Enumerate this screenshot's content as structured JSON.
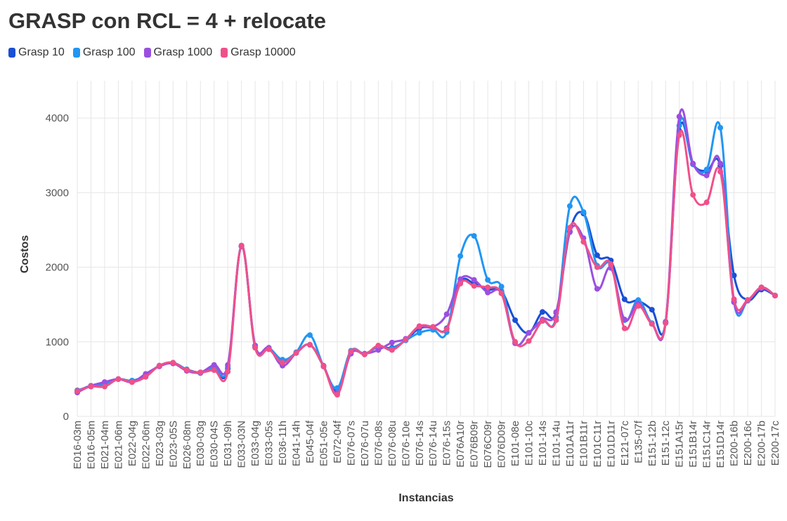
{
  "chart_data": {
    "type": "line",
    "title": "GRASP con RCL = 4 + relocate",
    "xlabel": "Instancias",
    "ylabel": "Costos",
    "ylim": [
      0,
      4500
    ],
    "yticks": [
      0,
      1000,
      2000,
      3000,
      4000
    ],
    "grid": true,
    "legend_position": "top-left",
    "categories": [
      "E016-03m",
      "E016-05m",
      "E021-04m",
      "E021-06m",
      "E022-04g",
      "E022-06m",
      "E023-03g",
      "E023-05S",
      "E026-08m",
      "E030-03g",
      "E030-04S",
      "E031-09h",
      "E033-03N",
      "E033-04g",
      "E033-05s",
      "E036-11h",
      "E041-14h",
      "E045-04f",
      "E051-05e",
      "E072-04f",
      "E076-07s",
      "E076-07u",
      "E076-08s",
      "E076-08u",
      "E076-10e",
      "E076-14s",
      "E076-14u",
      "E076-15s",
      "E076A10r",
      "E076B09r",
      "E076C09r",
      "E076D09r",
      "E101-08e",
      "E101-10c",
      "E101-14s",
      "E101-14u",
      "E101A11r",
      "E101B11r",
      "E101C11r",
      "E101D11r",
      "E121-07c",
      "E135-07f",
      "E151-12b",
      "E151-12c",
      "E151A15r",
      "E151B14r",
      "E151C14r",
      "E151D14r",
      "E200-16b",
      "E200-16c",
      "E200-17b",
      "E200-17c"
    ],
    "series": [
      {
        "name": "Grasp 10",
        "color": "#1a4fd6",
        "values": [
          340,
          410,
          430,
          500,
          470,
          550,
          680,
          710,
          630,
          590,
          640,
          640,
          2280,
          930,
          910,
          730,
          850,
          960,
          670,
          340,
          860,
          840,
          930,
          920,
          1020,
          1180,
          1190,
          1180,
          1800,
          1780,
          1700,
          1680,
          1290,
          1120,
          1400,
          1390,
          2480,
          2720,
          2160,
          2090,
          1570,
          1550,
          1430,
          1260,
          3830,
          3380,
          3290,
          3360,
          1890,
          1560,
          1700,
          1620
        ]
      },
      {
        "name": "Grasp 100",
        "color": "#2196f3",
        "values": [
          350,
          400,
          430,
          500,
          480,
          550,
          680,
          720,
          630,
          580,
          660,
          660,
          2290,
          950,
          920,
          760,
          860,
          1090,
          670,
          380,
          880,
          840,
          930,
          910,
          1020,
          1120,
          1160,
          1130,
          2150,
          2420,
          1830,
          1740,
          990,
          1120,
          1280,
          1330,
          2820,
          2740,
          2020,
          2030,
          1290,
          1560,
          1250,
          1270,
          3900,
          3380,
          3310,
          3870,
          1540,
          1550,
          1730,
          1620
        ]
      },
      {
        "name": "Grasp 1000",
        "color": "#9b4fe0",
        "values": [
          320,
          410,
          460,
          500,
          460,
          570,
          670,
          710,
          610,
          590,
          690,
          690,
          2280,
          950,
          920,
          680,
          850,
          960,
          680,
          310,
          840,
          840,
          890,
          990,
          1040,
          1200,
          1200,
          1370,
          1840,
          1830,
          1660,
          1650,
          980,
          1120,
          1300,
          1400,
          2470,
          2390,
          1710,
          1990,
          1300,
          1510,
          1240,
          1260,
          4020,
          3390,
          3230,
          3390,
          1530,
          1560,
          1720,
          1620
        ]
      },
      {
        "name": "Grasp 10000",
        "color": "#f0508a",
        "values": [
          340,
          400,
          400,
          500,
          460,
          530,
          680,
          720,
          620,
          590,
          620,
          600,
          2290,
          920,
          900,
          720,
          850,
          960,
          670,
          290,
          870,
          830,
          950,
          890,
          1030,
          1210,
          1200,
          1170,
          1780,
          1750,
          1730,
          1650,
          1000,
          1010,
          1280,
          1290,
          2530,
          2340,
          2000,
          2040,
          1180,
          1480,
          1240,
          1250,
          3770,
          2970,
          2870,
          3280,
          1570,
          1560,
          1730,
          1620
        ]
      }
    ]
  }
}
